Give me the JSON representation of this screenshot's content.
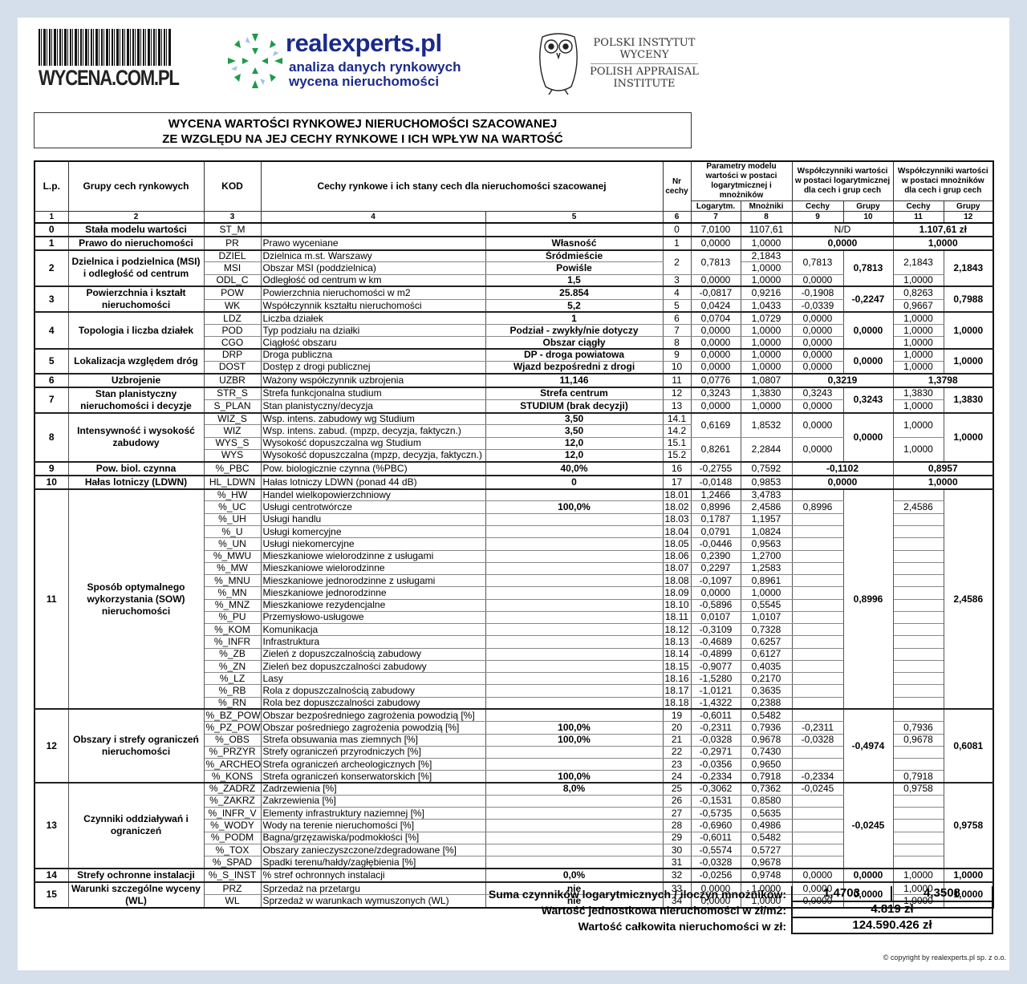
{
  "logos": {
    "wycena": "WYCENA.COM.PL",
    "realexperts": "realexperts.pl",
    "realexperts_line1": "analiza danych rynkowych",
    "realexperts_line2": "wycena nieruchomości",
    "piw_line1": "POLSKI INSTYTUT",
    "piw_line2": "WYCENY",
    "piw_line3": "POLISH APPRAISAL",
    "piw_line4": "INSTITUTE"
  },
  "title": {
    "line1": "WYCENA WARTOŚCI RYNKOWEJ NIERUCHOMOŚCI SZACOWANEJ",
    "line2": "ZE WZGLĘDU NA JEJ CECHY RYNKOWE I ICH WPŁYW NA WARTOŚĆ"
  },
  "header": {
    "lp": "L.p.",
    "groups": "Grupy cech rynkowych",
    "code": "KOD",
    "features": "Cechy rynkowe i ich stany cech dla nieruchomości szacowanej",
    "nr": "Nr cechy",
    "params": "Parametry modelu wartości w postaci logarytmicznej i mnożników",
    "coef_log": "Współczynniki wartości w postaci logarytmicznej dla cech i grup cech",
    "coef_mult": "Współczynniki wartości w postaci mnożników dla cech i grup cech",
    "log": "Logarytm.",
    "mult": "Mnożniki",
    "features_short": "Cechy",
    "groups_short": "Grupy",
    "col_numbers": [
      "1",
      "2",
      "3",
      "4",
      "5",
      "6",
      "7",
      "8",
      "9",
      "10",
      "11",
      "12"
    ]
  },
  "groups": [
    {
      "lp": "0",
      "name": "Stała modelu wartości",
      "merged9": "N/D",
      "merged11": "1.107,61 zł",
      "rows": [
        {
          "code": "ST_M",
          "desc": "",
          "val": "",
          "nr": "0",
          "log": "7,0100",
          "mn": "1107,61"
        }
      ]
    },
    {
      "lp": "1",
      "name": "Prawo do nieruchomości",
      "merged9": "0,0000",
      "merged11": "1,0000",
      "rows": [
        {
          "code": "PR",
          "desc": "Prawo wyceniane",
          "val": "Własność",
          "nr": "1",
          "log": "0,0000",
          "mn": "1,0000"
        }
      ]
    },
    {
      "lp": "2",
      "name": "Dzielnica i podzielnica (MSI) i odległość od centrum",
      "g10": "0,7813",
      "g12": "2,1843",
      "rows": [
        {
          "code": "DZIEL",
          "desc": "Dzielnica m.st. Warszawy",
          "val": "Śródmieście",
          "nr": "2",
          "log": "0,7813",
          "mn": "2,1843",
          "c9": "0,7813",
          "c11": "2,1843"
        },
        {
          "code": "MSI",
          "desc": "Obszar MSI (poddzielnica)",
          "val": "Powiśle",
          "mn": "1,0000"
        },
        {
          "code": "ODL_C",
          "desc": "Odległość od centrum w km",
          "val": "1,5",
          "nr": "3",
          "log": "0,0000",
          "mn": "1,0000",
          "c9": "0,0000",
          "c11": "1,0000"
        }
      ]
    },
    {
      "lp": "3",
      "name": "Powierzchnia i kształt nieruchomości",
      "g10": "-0,2247",
      "g12": "0,7988",
      "rows": [
        {
          "code": "POW",
          "desc": "Powierzchnia nieruchomości w m2",
          "val": "25.854",
          "nr": "4",
          "log": "-0,0817",
          "mn": "0,9216",
          "c9": "-0,1908",
          "c11": "0,8263"
        },
        {
          "code": "WK",
          "desc": "Współczynnik kształtu nieruchomości",
          "val": "5,2",
          "nr": "5",
          "log": "0,0424",
          "mn": "1,0433",
          "c9": "-0,0339",
          "c11": "0,9667"
        }
      ]
    },
    {
      "lp": "4",
      "name": "Topologia i liczba działek",
      "g10": "0,0000",
      "g12": "1,0000",
      "rows": [
        {
          "code": "LDZ",
          "desc": "Liczba działek",
          "val": "1",
          "nr": "6",
          "log": "0,0704",
          "mn": "1,0729",
          "c9": "0,0000",
          "c11": "1,0000"
        },
        {
          "code": "POD",
          "desc": "Typ podziału na działki",
          "val": "Podział - zwykły/nie dotyczy",
          "nr": "7",
          "log": "0,0000",
          "mn": "1,0000",
          "c9": "0,0000",
          "c11": "1,0000"
        },
        {
          "code": "CGO",
          "desc": "Ciągłość obszaru",
          "val": "Obszar ciągły",
          "nr": "8",
          "log": "0,0000",
          "mn": "1,0000",
          "c9": "0,0000",
          "c11": "1,0000"
        }
      ]
    },
    {
      "lp": "5",
      "name": "Lokalizacja względem dróg",
      "g10": "0,0000",
      "g12": "1,0000",
      "rows": [
        {
          "code": "DRP",
          "desc": "Droga publiczna",
          "val": "DP - droga powiatowa",
          "nr": "9",
          "log": "0,0000",
          "mn": "1,0000",
          "c9": "0,0000",
          "c11": "1,0000"
        },
        {
          "code": "DOST",
          "desc": "Dostęp z drogi publicznej",
          "val": "Wjazd bezpośredni z drogi",
          "nr": "10",
          "log": "0,0000",
          "mn": "1,0000",
          "c9": "0,0000",
          "c11": "1,0000"
        }
      ]
    },
    {
      "lp": "6",
      "name": "Uzbrojenie",
      "merged9": "0,3219",
      "merged11": "1,3798",
      "rows": [
        {
          "code": "UZBR",
          "desc": "Ważony współczynnik uzbrojenia",
          "val": "11,146",
          "nr": "11",
          "log": "0,0776",
          "mn": "1,0807"
        }
      ]
    },
    {
      "lp": "7",
      "name": "Stan planistyczny nieruchomości i decyzje",
      "g10": "0,3243",
      "g12": "1,3830",
      "rows": [
        {
          "code": "STR_S",
          "desc": "Strefa funkcjonalna studium",
          "val": "Strefa centrum",
          "nr": "12",
          "log": "0,3243",
          "mn": "1,3830",
          "c9": "0,3243",
          "c11": "1,3830"
        },
        {
          "code": "S_PLAN",
          "desc": "Stan planistyczny/decyzja",
          "val": "STUDIUM (brak decyzji)",
          "nr": "13",
          "log": "0,0000",
          "mn": "1,0000",
          "c9": "0,0000",
          "c11": "1,0000"
        }
      ]
    },
    {
      "lp": "8",
      "name": "Intensywność i wysokość zabudowy",
      "g10": "0,0000",
      "g12": "1,0000",
      "rows": [
        {
          "code": "WIZ_S",
          "desc": "Wsp. intens. zabudowy wg Studium",
          "val": "3,50",
          "nr": "14.1",
          "log": "0,6169",
          "mn": "1,8532",
          "c9": "0,0000",
          "c11": "1,0000"
        },
        {
          "code": "WIZ",
          "desc": "Wsp. intens. zabud. (mpzp, decyzja, faktyczn.)",
          "val": "3,50",
          "nr": "14.2"
        },
        {
          "code": "WYS_S",
          "desc": "Wysokość dopuszczalna wg Studium",
          "val": "12,0",
          "nr": "15.1",
          "log": "0,8261",
          "mn": "2,2844",
          "c9": "0,0000",
          "c11": "1,0000"
        },
        {
          "code": "WYS",
          "desc": "Wysokość dopuszczalna (mpzp, decyzja, faktyczn.)",
          "val": "12,0",
          "nr": "15.2"
        }
      ]
    },
    {
      "lp": "9",
      "name": "Pow. biol. czynna",
      "merged9": "-0,1102",
      "merged11": "0,8957",
      "rows": [
        {
          "code": "%_PBC",
          "desc": "Pow. biologicznie czynna (%PBC)",
          "val": "40,0%",
          "nr": "16",
          "log": "-0,2755",
          "mn": "0,7592"
        }
      ]
    },
    {
      "lp": "10",
      "name": "Hałas lotniczy (LDWN)",
      "merged9": "0,0000",
      "merged11": "1,0000",
      "rows": [
        {
          "code": "HL_LDWN",
          "desc": "Hałas lotniczy LDWN (ponad 44 dB)",
          "val": "0",
          "nr": "17",
          "log": "-0,0148",
          "mn": "0,9853"
        }
      ]
    },
    {
      "lp": "11",
      "name": "Sposób optymalnego wykorzystania (SOW) nieruchomości",
      "g10": "0,8996",
      "g12": "2,4586",
      "rows": [
        {
          "code": "%_HW",
          "desc": "Handel wielkopowierzchniowy",
          "val": "",
          "nr": "18.01",
          "log": "1,2466",
          "mn": "3,4783",
          "c9": "",
          "c11": ""
        },
        {
          "code": "%_UC",
          "desc": "Usługi centrotwórcze",
          "val": "100,0%",
          "nr": "18.02",
          "log": "0,8996",
          "mn": "2,4586",
          "c9": "0,8996",
          "c11": "2,4586"
        },
        {
          "code": "%_UH",
          "desc": "Usługi handlu",
          "val": "",
          "nr": "18.03",
          "log": "0,1787",
          "mn": "1,1957",
          "c9": "",
          "c11": ""
        },
        {
          "code": "%_U",
          "desc": "Usługi komercyjne",
          "val": "",
          "nr": "18.04",
          "log": "0,0791",
          "mn": "1,0824",
          "c9": "",
          "c11": ""
        },
        {
          "code": "%_UN",
          "desc": "Usługi niekomercyjne",
          "val": "",
          "nr": "18.05",
          "log": "-0,0446",
          "mn": "0,9563",
          "c9": "",
          "c11": ""
        },
        {
          "code": "%_MWU",
          "desc": "Mieszkaniowe wielorodzinne z usługami",
          "val": "",
          "nr": "18.06",
          "log": "0,2390",
          "mn": "1,2700",
          "c9": "",
          "c11": ""
        },
        {
          "code": "%_MW",
          "desc": "Mieszkaniowe wielorodzinne",
          "val": "",
          "nr": "18.07",
          "log": "0,2297",
          "mn": "1,2583",
          "c9": "",
          "c11": ""
        },
        {
          "code": "%_MNU",
          "desc": "Mieszkaniowe jednorodzinne z usługami",
          "val": "",
          "nr": "18.08",
          "log": "-0,1097",
          "mn": "0,8961",
          "c9": "",
          "c11": ""
        },
        {
          "code": "%_MN",
          "desc": "Mieszkaniowe jednorodzinne",
          "val": "",
          "nr": "18.09",
          "log": "0,0000",
          "mn": "1,0000",
          "c9": "",
          "c11": ""
        },
        {
          "code": "%_MNZ",
          "desc": "Mieszkaniowe rezydencjalne",
          "val": "",
          "nr": "18.10",
          "log": "-0,5896",
          "mn": "0,5545",
          "c9": "",
          "c11": ""
        },
        {
          "code": "%_PU",
          "desc": "Przemysłowo-usługowe",
          "val": "",
          "nr": "18.11",
          "log": "0,0107",
          "mn": "1,0107",
          "c9": "",
          "c11": ""
        },
        {
          "code": "%_KOM",
          "desc": "Komunikacja",
          "val": "",
          "nr": "18.12",
          "log": "-0,3109",
          "mn": "0,7328",
          "c9": "",
          "c11": ""
        },
        {
          "code": "%_INFR",
          "desc": "Infrastruktura",
          "val": "",
          "nr": "18.13",
          "log": "-0,4689",
          "mn": "0,6257",
          "c9": "",
          "c11": ""
        },
        {
          "code": "%_ZB",
          "desc": "Zieleń z dopuszczalnością zabudowy",
          "val": "",
          "nr": "18.14",
          "log": "-0,4899",
          "mn": "0,6127",
          "c9": "",
          "c11": ""
        },
        {
          "code": "%_ZN",
          "desc": "Zieleń bez dopuszczalności zabudowy",
          "val": "",
          "nr": "18.15",
          "log": "-0,9077",
          "mn": "0,4035",
          "c9": "",
          "c11": ""
        },
        {
          "code": "%_LZ",
          "desc": "Lasy",
          "val": "",
          "nr": "18.16",
          "log": "-1,5280",
          "mn": "0,2170",
          "c9": "",
          "c11": ""
        },
        {
          "code": "%_RB",
          "desc": "Rola z dopuszczalnością zabudowy",
          "val": "",
          "nr": "18.17",
          "log": "-1,0121",
          "mn": "0,3635",
          "c9": "",
          "c11": ""
        },
        {
          "code": "%_RN",
          "desc": "Rola bez dopuszczalności zabudowy",
          "val": "",
          "nr": "18.18",
          "log": "-1,4322",
          "mn": "0,2388",
          "c9": "",
          "c11": ""
        }
      ]
    },
    {
      "lp": "12",
      "name": "Obszary i strefy ograniczeń nieruchomości",
      "g10": "-0,4974",
      "g12": "0,6081",
      "rows": [
        {
          "code": "%_BZ_POW",
          "desc": "Obszar bezpośredniego zagrożenia powodzią [%]",
          "val": "",
          "nr": "19",
          "log": "-0,6011",
          "mn": "0,5482",
          "c9": "",
          "c11": ""
        },
        {
          "code": "%_PZ_POW",
          "desc": "Obszar pośredniego zagrożenia powodzią [%]",
          "val": "100,0%",
          "nr": "20",
          "log": "-0,2311",
          "mn": "0,7936",
          "c9": "-0,2311",
          "c11": "0,7936"
        },
        {
          "code": "%_OBS",
          "desc": "Strefa obsuwania mas ziemnych [%]",
          "val": "100,0%",
          "nr": "21",
          "log": "-0,0328",
          "mn": "0,9678",
          "c9": "-0,0328",
          "c11": "0,9678"
        },
        {
          "code": "%_PRZYR",
          "desc": "Strefy ograniczeń przyrodniczych [%]",
          "val": "",
          "nr": "22",
          "log": "-0,2971",
          "mn": "0,7430",
          "c9": "",
          "c11": ""
        },
        {
          "code": "%_ARCHEO",
          "desc": "Strefa ograniczeń archeologicznych [%]",
          "val": "",
          "nr": "23",
          "log": "-0,0356",
          "mn": "0,9650",
          "c9": "",
          "c11": ""
        },
        {
          "code": "%_KONS",
          "desc": "Strefa ograniczeń konserwatorskich [%]",
          "val": "100,0%",
          "nr": "24",
          "log": "-0,2334",
          "mn": "0,7918",
          "c9": "-0,2334",
          "c11": "0,7918"
        }
      ]
    },
    {
      "lp": "13",
      "name": "Czynniki oddziaływań i ograniczeń",
      "g10": "-0,0245",
      "g12": "0,9758",
      "rows": [
        {
          "code": "%_ZADRZ",
          "desc": "Zadrzewienia [%]",
          "val": "8,0%",
          "nr": "25",
          "log": "-0,3062",
          "mn": "0,7362",
          "c9": "-0,0245",
          "c11": "0,9758"
        },
        {
          "code": "%_ZAKRZ",
          "desc": "Zakrzewienia [%]",
          "val": "",
          "nr": "26",
          "log": "-0,1531",
          "mn": "0,8580",
          "c9": "",
          "c11": ""
        },
        {
          "code": "%_INFR_V",
          "desc": "Elementy infrastruktury naziemnej [%]",
          "val": "",
          "nr": "27",
          "log": "-0,5735",
          "mn": "0,5635",
          "c9": "",
          "c11": ""
        },
        {
          "code": "%_WODY",
          "desc": "Wody na terenie nieruchomości [%]",
          "val": "",
          "nr": "28",
          "log": "-0,6960",
          "mn": "0,4986",
          "c9": "",
          "c11": ""
        },
        {
          "code": "%_PODM",
          "desc": "Bagna/grzęzawiska/podmokłości [%]",
          "val": "",
          "nr": "29",
          "log": "-0,6011",
          "mn": "0,5482",
          "c9": "",
          "c11": ""
        },
        {
          "code": "%_TOX",
          "desc": "Obszary zanieczyszczone/zdegradowane [%]",
          "val": "",
          "nr": "30",
          "log": "-0,5574",
          "mn": "0,5727",
          "c9": "",
          "c11": ""
        },
        {
          "code": "%_SPAD",
          "desc": "Spadki terenu/hałdy/zagłębienia [%]",
          "val": "",
          "nr": "31",
          "log": "-0,0328",
          "mn": "0,9678",
          "c9": "",
          "c11": ""
        }
      ]
    },
    {
      "lp": "14",
      "name": "Strefy ochronne instalacji",
      "g10": "0,0000",
      "g12": "1,0000",
      "rows": [
        {
          "code": "%_S_INST",
          "desc": "% stref ochronnych instalacji",
          "val": "0,0%",
          "nr": "32",
          "log": "-0,0256",
          "mn": "0,9748",
          "c9": "0,0000",
          "c11": "1,0000"
        }
      ]
    },
    {
      "lp": "15",
      "name": "Warunki szczególne wyceny (WL)",
      "g10": "0,0000",
      "g12": "1,0000",
      "rows": [
        {
          "code": "PRZ",
          "desc": "Sprzedaż na przetargu",
          "val": "nie",
          "nr": "33",
          "log": "0,0000",
          "mn": "1,0000",
          "c9": "0,0000",
          "c11": "1,0000"
        },
        {
          "code": "WL",
          "desc": "Sprzedaż w warunkach wymuszonych (WL)",
          "val": "nie",
          "nr": "34",
          "log": "0,0000",
          "mn": "1,0000",
          "c9": "0,0000",
          "c11": "1,0000"
        }
      ]
    }
  ],
  "summary": {
    "sum_label": "Suma czynników logarytmicznych / iloczyn mnożników:",
    "sum_log": "1,4703",
    "product_mult": "4,3508",
    "unit_label": "Wartość jednostkowa nieruchomości w zł/m2:",
    "unit_value": "4.819 zł",
    "total_label": "Wartość całkowita nieruchomości w zł:",
    "total_value": "124.590.426 zł"
  },
  "copyright": "© copyright by realexperts.pl sp. z o.o."
}
